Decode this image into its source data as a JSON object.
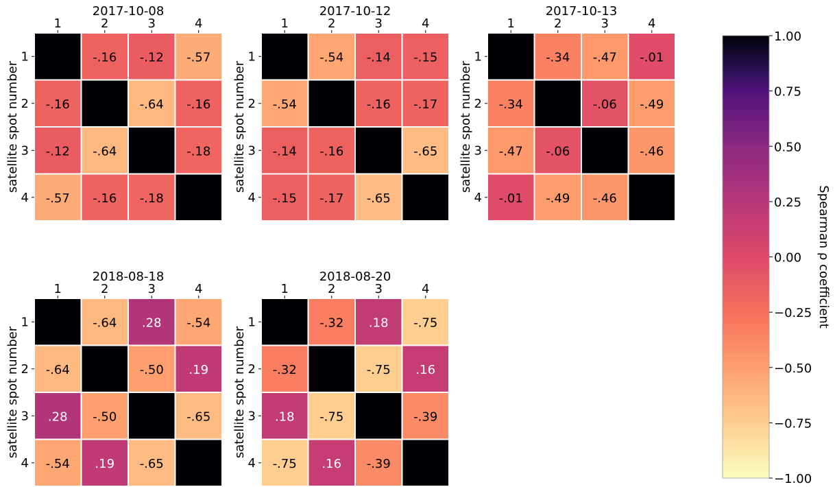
{
  "chart_data": {
    "type": "heatmap",
    "colormap": "magma_r",
    "row_label": "satellite spot number",
    "row_categories": [
      "1",
      "2",
      "3",
      "4"
    ],
    "col_categories": [
      "1",
      "2",
      "3",
      "4"
    ],
    "panels": [
      {
        "title": "2017-10-08",
        "values": [
          [
            1.0,
            -0.16,
            -0.12,
            -0.57
          ],
          [
            -0.16,
            1.0,
            -0.64,
            -0.16
          ],
          [
            -0.12,
            -0.64,
            1.0,
            -0.18
          ],
          [
            -0.57,
            -0.16,
            -0.18,
            1.0
          ]
        ],
        "labels": [
          [
            "",
            "-.16",
            "-.12",
            "-.57"
          ],
          [
            "-.16",
            "",
            "-.64",
            "-.16"
          ],
          [
            "-.12",
            "-.64",
            "",
            "-.18"
          ],
          [
            "-.57",
            "-.16",
            "-.18",
            ""
          ]
        ]
      },
      {
        "title": "2017-10-12",
        "values": [
          [
            1.0,
            -0.54,
            -0.14,
            -0.15
          ],
          [
            -0.54,
            1.0,
            -0.16,
            -0.17
          ],
          [
            -0.14,
            -0.16,
            1.0,
            -0.65
          ],
          [
            -0.15,
            -0.17,
            -0.65,
            1.0
          ]
        ],
        "labels": [
          [
            "",
            "-.54",
            "-.14",
            "-.15"
          ],
          [
            "-.54",
            "",
            "-.16",
            "-.17"
          ],
          [
            "-.14",
            "-.16",
            "",
            "-.65"
          ],
          [
            "-.15",
            "-.17",
            "-.65",
            ""
          ]
        ]
      },
      {
        "title": "2017-10-13",
        "values": [
          [
            1.0,
            -0.34,
            -0.47,
            -0.01
          ],
          [
            -0.34,
            1.0,
            -0.06,
            -0.49
          ],
          [
            -0.47,
            -0.06,
            1.0,
            -0.46
          ],
          [
            -0.01,
            -0.49,
            -0.46,
            1.0
          ]
        ],
        "labels": [
          [
            "",
            "-.34",
            "-.47",
            "-.01"
          ],
          [
            "-.34",
            "",
            "-.06",
            "-.49"
          ],
          [
            "-.47",
            "-.06",
            "",
            "-.46"
          ],
          [
            "-.01",
            "-.49",
            "-.46",
            ""
          ]
        ]
      },
      {
        "title": "2018-08-18",
        "values": [
          [
            1.0,
            -0.64,
            0.28,
            -0.54
          ],
          [
            -0.64,
            1.0,
            -0.5,
            0.19
          ],
          [
            0.28,
            -0.5,
            1.0,
            -0.65
          ],
          [
            -0.54,
            0.19,
            -0.65,
            1.0
          ]
        ],
        "labels": [
          [
            "",
            "-.64",
            ".28",
            "-.54"
          ],
          [
            "-.64",
            "",
            "-.50",
            ".19"
          ],
          [
            ".28",
            "-.50",
            "",
            "-.65"
          ],
          [
            "-.54",
            ".19",
            "-.65",
            ""
          ]
        ]
      },
      {
        "title": "2018-08-20",
        "values": [
          [
            1.0,
            -0.32,
            0.18,
            -0.75
          ],
          [
            -0.32,
            1.0,
            -0.75,
            0.16
          ],
          [
            0.18,
            -0.75,
            1.0,
            -0.39
          ],
          [
            -0.75,
            0.16,
            -0.39,
            1.0
          ]
        ],
        "labels": [
          [
            "",
            "-.32",
            ".18",
            "-.75"
          ],
          [
            "-.32",
            "",
            "-.75",
            ".16"
          ],
          [
            ".18",
            "-.75",
            "",
            "-.39"
          ],
          [
            "-.75",
            ".16",
            "-.39",
            ""
          ]
        ]
      }
    ],
    "colorbar": {
      "label": "Spearman ρ coefficient",
      "range": [
        -1.0,
        1.0
      ],
      "ticks": [
        1.0,
        0.75,
        0.5,
        0.25,
        0.0,
        -0.25,
        -0.5,
        -0.75,
        -1.0
      ],
      "tick_labels": [
        "1.00",
        "0.75",
        "0.50",
        "0.25",
        "0.00",
        "−0.25",
        "−0.50",
        "−0.75",
        "−1.00"
      ]
    }
  }
}
